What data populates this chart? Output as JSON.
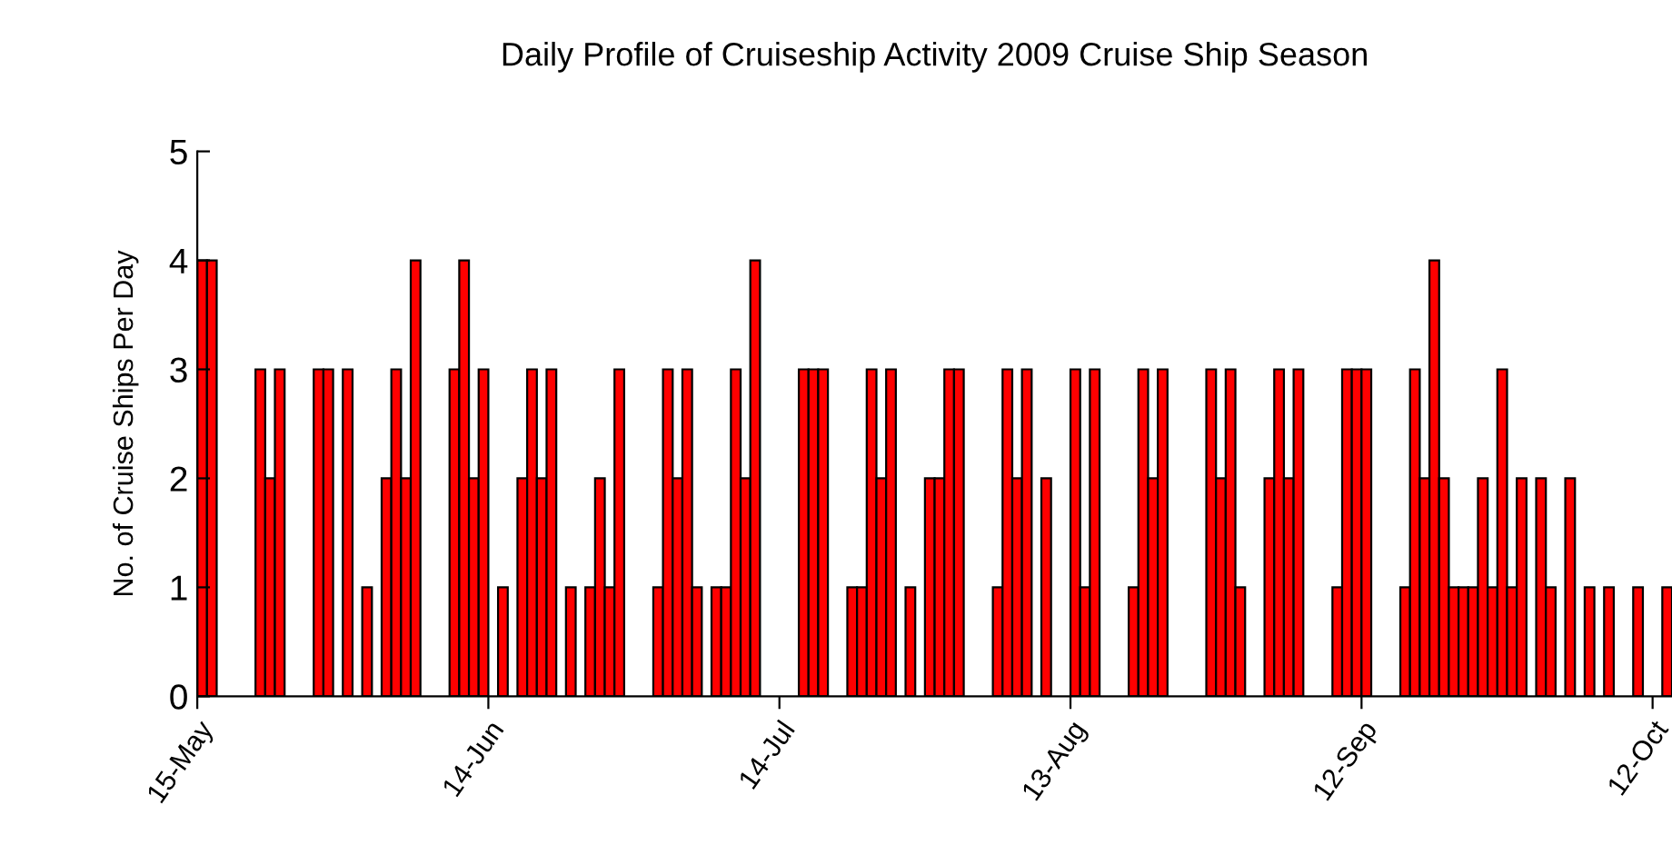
{
  "chart_data": {
    "type": "bar",
    "title": "Daily Profile of Cruiseship Activity 2009 Cruise Ship Season",
    "ylabel": "No. of Cruise Ships Per Day",
    "x": [
      "2009-05-15",
      "2009-05-16",
      "2009-05-21",
      "2009-05-22",
      "2009-05-23",
      "2009-05-27",
      "2009-05-28",
      "2009-05-30",
      "2009-06-01",
      "2009-06-03",
      "2009-06-04",
      "2009-06-05",
      "2009-06-06",
      "2009-06-10",
      "2009-06-11",
      "2009-06-12",
      "2009-06-13",
      "2009-06-15",
      "2009-06-17",
      "2009-06-18",
      "2009-06-19",
      "2009-06-20",
      "2009-06-22",
      "2009-06-24",
      "2009-06-25",
      "2009-06-26",
      "2009-06-27",
      "2009-07-01",
      "2009-07-02",
      "2009-07-03",
      "2009-07-04",
      "2009-07-05",
      "2009-07-07",
      "2009-07-08",
      "2009-07-09",
      "2009-07-10",
      "2009-07-11",
      "2009-07-16",
      "2009-07-17",
      "2009-07-18",
      "2009-07-21",
      "2009-07-22",
      "2009-07-23",
      "2009-07-24",
      "2009-07-25",
      "2009-07-27",
      "2009-07-29",
      "2009-07-30",
      "2009-07-31",
      "2009-08-01",
      "2009-08-05",
      "2009-08-06",
      "2009-08-07",
      "2009-08-08",
      "2009-08-10",
      "2009-08-13",
      "2009-08-14",
      "2009-08-15",
      "2009-08-19",
      "2009-08-20",
      "2009-08-21",
      "2009-08-22",
      "2009-08-27",
      "2009-08-28",
      "2009-08-29",
      "2009-08-30",
      "2009-09-02",
      "2009-09-03",
      "2009-09-04",
      "2009-09-05",
      "2009-09-09",
      "2009-09-10",
      "2009-09-11",
      "2009-09-12",
      "2009-09-16",
      "2009-09-17",
      "2009-09-18",
      "2009-09-19",
      "2009-09-20",
      "2009-09-21",
      "2009-09-22",
      "2009-09-23",
      "2009-09-24",
      "2009-09-25",
      "2009-09-26",
      "2009-09-27",
      "2009-09-28",
      "2009-09-30",
      "2009-10-01",
      "2009-10-03",
      "2009-10-05",
      "2009-10-07",
      "2009-10-10",
      "2009-10-13"
    ],
    "values": [
      4,
      4,
      3,
      2,
      3,
      3,
      3,
      3,
      1,
      2,
      3,
      2,
      4,
      3,
      4,
      2,
      3,
      1,
      2,
      3,
      2,
      3,
      1,
      1,
      2,
      1,
      3,
      1,
      3,
      2,
      3,
      1,
      1,
      1,
      3,
      2,
      4,
      3,
      3,
      3,
      1,
      1,
      3,
      2,
      3,
      1,
      2,
      2,
      3,
      3,
      1,
      3,
      2,
      3,
      2,
      3,
      1,
      3,
      1,
      3,
      2,
      3,
      3,
      2,
      3,
      1,
      2,
      3,
      2,
      3,
      1,
      3,
      3,
      3,
      1,
      3,
      2,
      4,
      2,
      1,
      1,
      1,
      2,
      1,
      3,
      1,
      2,
      2,
      1,
      2,
      1,
      1,
      1,
      1
    ],
    "color": "#ff0000",
    "xlim": [
      "2009-05-15",
      "2009-10-14"
    ],
    "xticks": [
      {
        "value": "2009-05-15",
        "label": "15-May"
      },
      {
        "value": "2009-06-14",
        "label": "14-Jun"
      },
      {
        "value": "2009-07-14",
        "label": "14-Jul"
      },
      {
        "value": "2009-08-13",
        "label": "13-Aug"
      },
      {
        "value": "2009-09-12",
        "label": "12-Sep"
      },
      {
        "value": "2009-10-12",
        "label": "12-Oct"
      }
    ],
    "ylim": [
      0,
      5
    ],
    "yticks": [
      0,
      1,
      2,
      3,
      4,
      5
    ],
    "grid": false,
    "legend": false
  }
}
